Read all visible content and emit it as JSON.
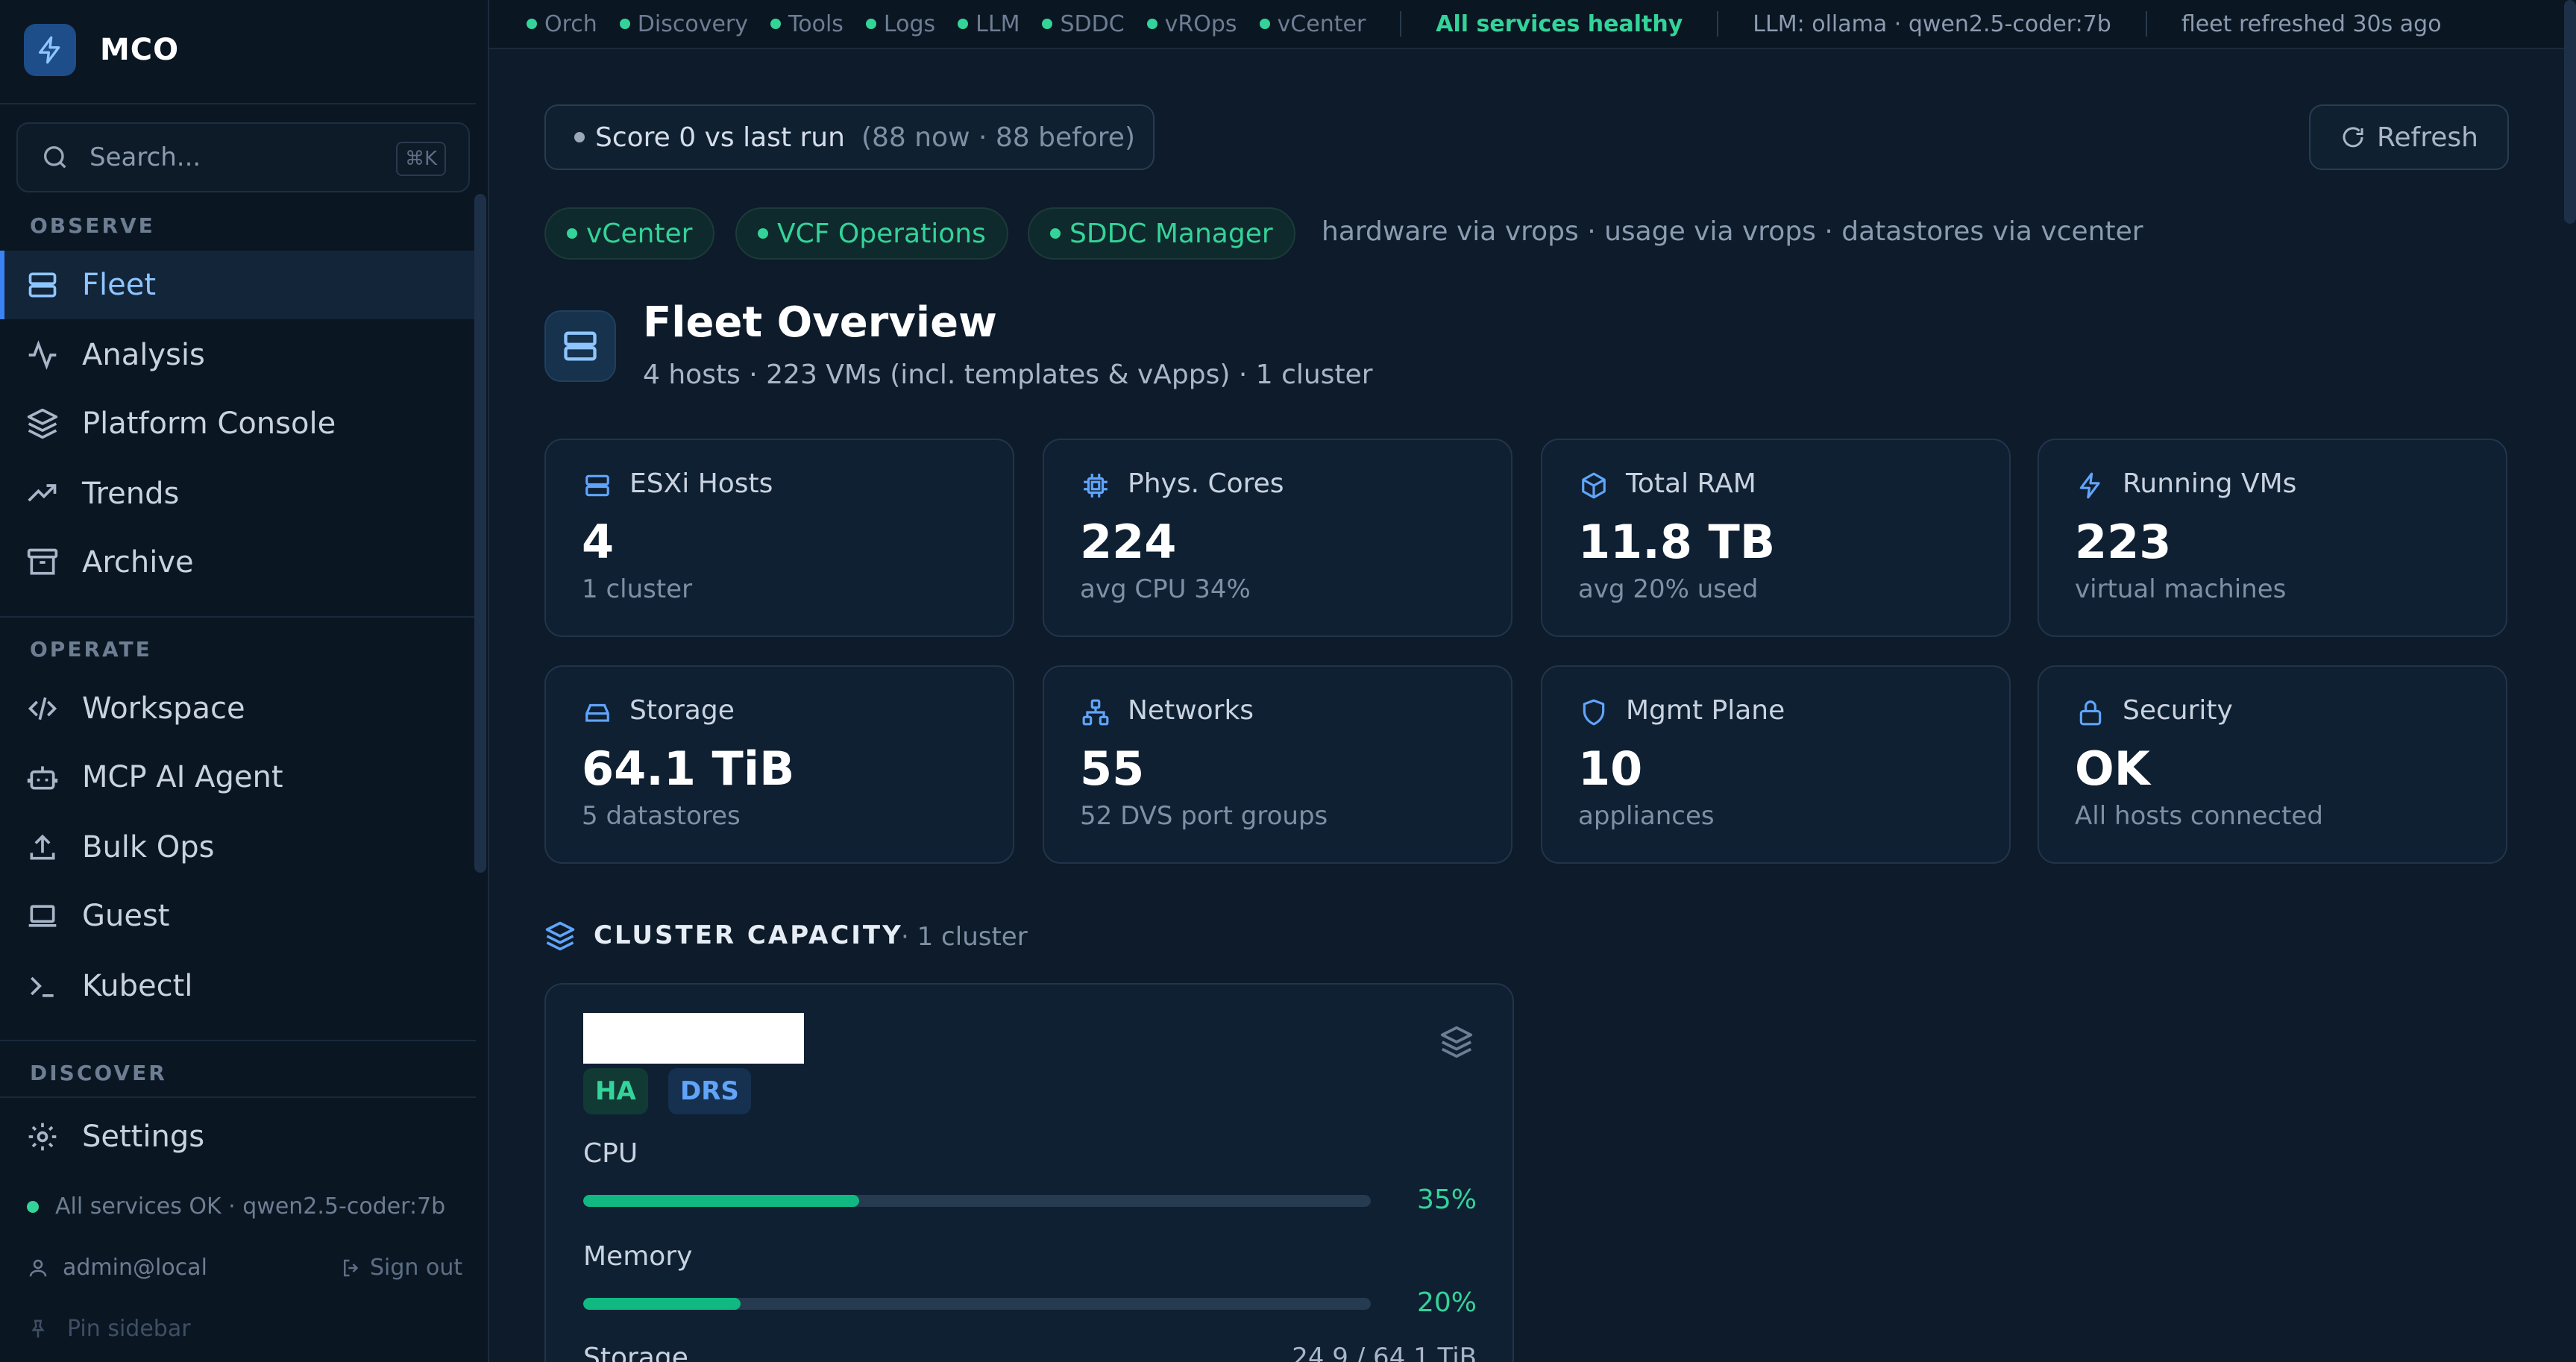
{
  "app": {
    "name": "MCO"
  },
  "search": {
    "placeholder": "Search...",
    "shortcut": "⌘K"
  },
  "sidebar": {
    "sections": {
      "observe": "OBSERVE",
      "operate": "OPERATE",
      "discover": "DISCOVER"
    },
    "observe_items": [
      {
        "label": "Fleet",
        "icon": "server-icon",
        "active": true
      },
      {
        "label": "Analysis",
        "icon": "activity-icon"
      },
      {
        "label": "Platform Console",
        "icon": "layers-icon"
      },
      {
        "label": "Trends",
        "icon": "trending-up-icon"
      },
      {
        "label": "Archive",
        "icon": "archive-icon"
      }
    ],
    "operate_items": [
      {
        "label": "Workspace",
        "icon": "code-icon"
      },
      {
        "label": "MCP AI Agent",
        "icon": "bot-icon"
      },
      {
        "label": "Bulk Ops",
        "icon": "upload-icon"
      },
      {
        "label": "Guest",
        "icon": "laptop-icon"
      },
      {
        "label": "Kubectl",
        "icon": "terminal-icon"
      }
    ],
    "discover_items": [
      {
        "label": "Settings",
        "icon": "gear-icon"
      }
    ],
    "status": "All services OK · qwen2.5-coder:7b",
    "user": "admin@local",
    "sign_out": "Sign out",
    "pin": "Pin sidebar"
  },
  "topbar": {
    "services": [
      "Orch",
      "Discovery",
      "Tools",
      "Logs",
      "LLM",
      "SDDC",
      "vROps",
      "vCenter"
    ],
    "health": "All services healthy",
    "llm": "LLM: ollama · qwen2.5-coder:7b",
    "refreshed": "fleet refreshed 30s ago"
  },
  "score": {
    "label": "Score 0 vs last run",
    "detail": "(88 now · 88 before)"
  },
  "refresh_button": "Refresh",
  "sources": {
    "chips": [
      "vCenter",
      "VCF Operations",
      "SDDC Manager"
    ],
    "note": "hardware via vrops · usage via vrops · datastores via vcenter"
  },
  "overview": {
    "title": "Fleet Overview",
    "subtitle": "4 hosts · 223 VMs (incl. templates & vApps) · 1 cluster"
  },
  "cards": [
    {
      "title": "ESXi Hosts",
      "value": "4",
      "sub": "1 cluster",
      "icon": "server-icon"
    },
    {
      "title": "Phys. Cores",
      "value": "224",
      "sub": "avg CPU 34%",
      "icon": "cpu-icon"
    },
    {
      "title": "Total RAM",
      "value": "11.8 TB",
      "sub": "avg 20% used",
      "icon": "box-icon"
    },
    {
      "title": "Running VMs",
      "value": "223",
      "sub": "virtual machines",
      "icon": "zap-icon"
    },
    {
      "title": "Storage",
      "value": "64.1 TiB",
      "sub": "5 datastores",
      "icon": "hard-drive-icon"
    },
    {
      "title": "Networks",
      "value": "55",
      "sub": "52 DVS port groups",
      "icon": "network-icon"
    },
    {
      "title": "Mgmt Plane",
      "value": "10",
      "sub": "appliances",
      "icon": "shield-icon"
    },
    {
      "title": "Security",
      "value": "OK",
      "sub": "All hosts connected",
      "icon": "lock-icon"
    }
  ],
  "cluster_capacity": {
    "title": "CLUSTER CAPACITY",
    "count": "· 1 cluster",
    "badges": [
      "HA",
      "DRS"
    ],
    "metrics": [
      {
        "label": "CPU",
        "percent_text": "35%",
        "fill": 0.35
      },
      {
        "label": "Memory",
        "percent_text": "20%",
        "fill": 0.2
      },
      {
        "label": "Storage",
        "value_text": "24.9 / 64.1 TiB"
      }
    ]
  },
  "colors": {
    "accent": "#3b82f6",
    "healthy": "#34d399",
    "background": "#0d1b2a"
  }
}
